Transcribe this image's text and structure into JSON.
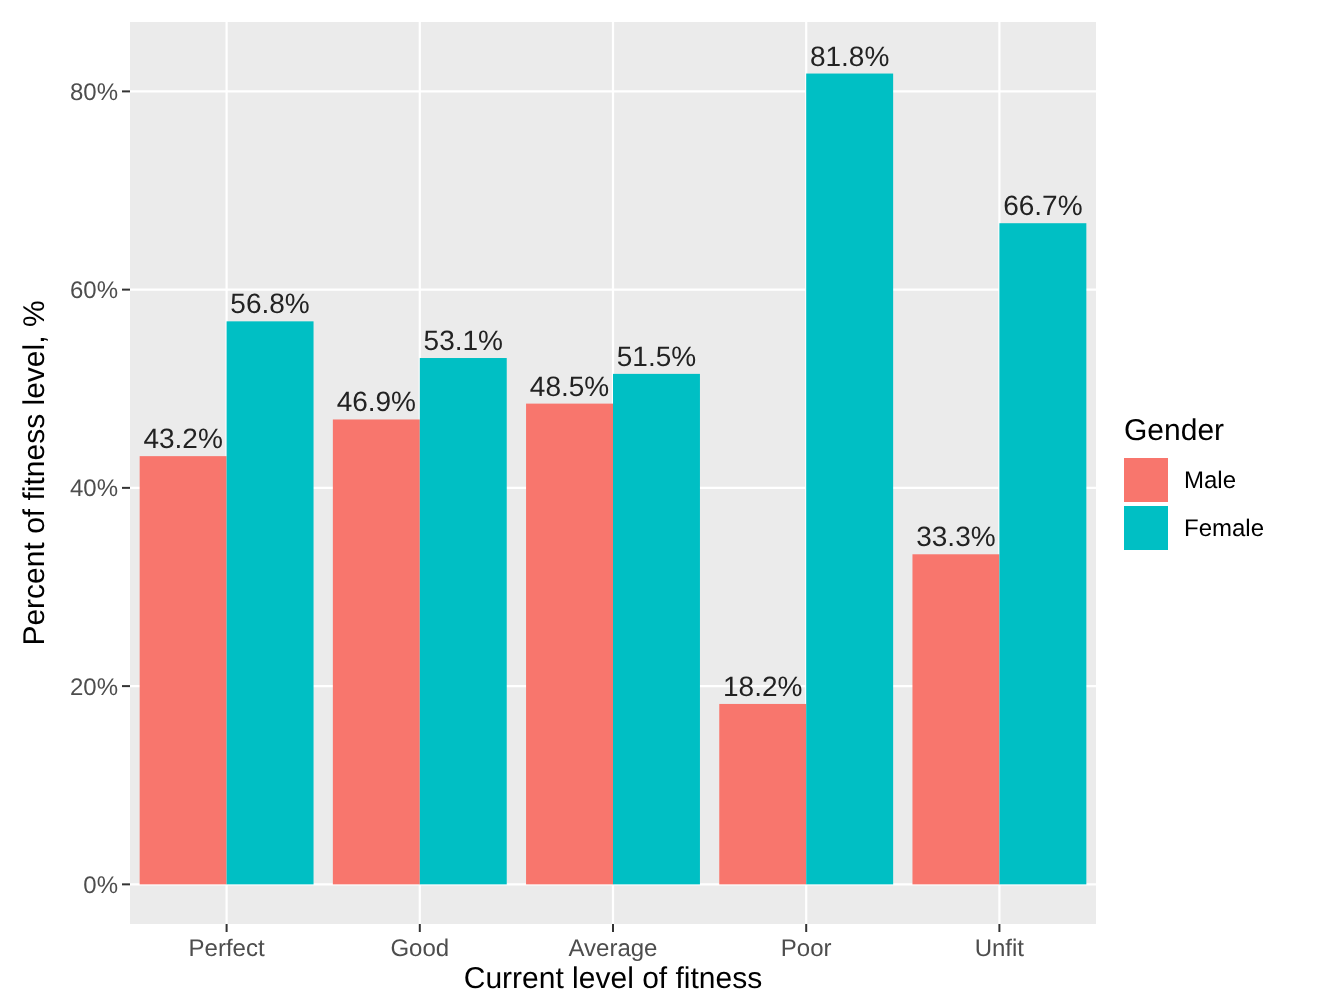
{
  "chart_data": {
    "type": "bar",
    "xlabel": "Current level of fitness",
    "ylabel": "Percent of fitness level, %",
    "legend_title": "Gender",
    "categories": [
      "Perfect",
      "Good",
      "Average",
      "Poor",
      "Unfit"
    ],
    "series": [
      {
        "name": "Male",
        "color": "#f8766d",
        "values": [
          43.2,
          46.9,
          48.5,
          18.2,
          33.3
        ],
        "value_labels": [
          "43.2%",
          "46.9%",
          "48.5%",
          "18.2%",
          "33.3%"
        ]
      },
      {
        "name": "Female",
        "color": "#00bfc4",
        "values": [
          56.8,
          53.1,
          51.5,
          81.8,
          66.7
        ],
        "value_labels": [
          "56.8%",
          "53.1%",
          "51.5%",
          "81.8%",
          "66.7%"
        ]
      }
    ],
    "ylim": [
      -4,
      87
    ],
    "yticks": [
      {
        "value": 0,
        "label": "0%"
      },
      {
        "value": 20,
        "label": "20%"
      },
      {
        "value": 40,
        "label": "40%"
      },
      {
        "value": 60,
        "label": "60%"
      },
      {
        "value": 80,
        "label": "80%"
      }
    ],
    "grid": true,
    "legend": "right"
  }
}
